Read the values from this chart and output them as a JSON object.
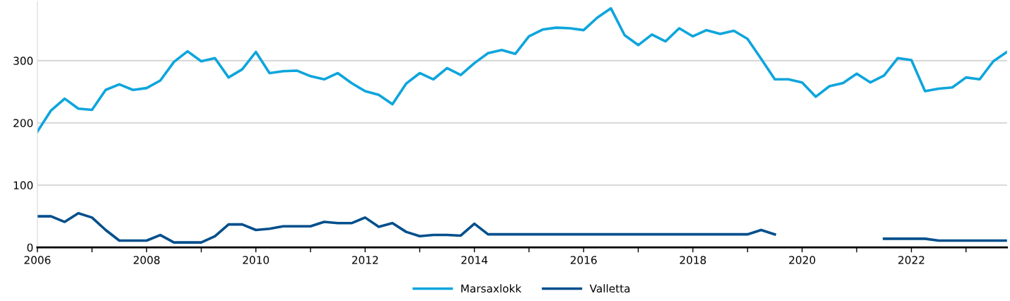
{
  "chart_data": {
    "type": "line",
    "x": [
      2006.0,
      2006.25,
      2006.5,
      2006.75,
      2007.0,
      2007.25,
      2007.5,
      2007.75,
      2008.0,
      2008.25,
      2008.5,
      2008.75,
      2009.0,
      2009.25,
      2009.5,
      2009.75,
      2010.0,
      2010.25,
      2010.5,
      2010.75,
      2011.0,
      2011.25,
      2011.5,
      2011.75,
      2012.0,
      2012.25,
      2012.5,
      2012.75,
      2013.0,
      2013.25,
      2013.5,
      2013.75,
      2014.0,
      2014.25,
      2014.5,
      2014.75,
      2015.0,
      2015.25,
      2015.5,
      2015.75,
      2016.0,
      2016.25,
      2016.5,
      2016.75,
      2017.0,
      2017.25,
      2017.5,
      2017.75,
      2018.0,
      2018.25,
      2018.5,
      2018.75,
      2019.0,
      2019.25,
      2019.5,
      2019.75,
      2020.0,
      2020.25,
      2020.5,
      2020.75,
      2021.0,
      2021.25,
      2021.5,
      2021.75,
      2022.0,
      2022.25,
      2022.5,
      2022.75,
      2023.0,
      2023.25,
      2023.5,
      2023.75
    ],
    "series": [
      {
        "name": "Marsaxlokk",
        "color": "#0ea5dc",
        "values": [
          186,
          220,
          239,
          223,
          221,
          253,
          262,
          253,
          256,
          268,
          298,
          315,
          299,
          304,
          273,
          286,
          314,
          280,
          283,
          284,
          275,
          270,
          280,
          264,
          251,
          245,
          230,
          263,
          280,
          270,
          288,
          277,
          296,
          312,
          317,
          311,
          339,
          350,
          353,
          352,
          349,
          369,
          384,
          341,
          325,
          342,
          331,
          352,
          339,
          349,
          343,
          348,
          335,
          303,
          270,
          270,
          265,
          242,
          259,
          264,
          279,
          265,
          276,
          304,
          301,
          251,
          255,
          257,
          273,
          270,
          299,
          314
        ]
      },
      {
        "name": "Valletta",
        "color": "#004f8c",
        "values": [
          50,
          50,
          41,
          55,
          48,
          28,
          11,
          11,
          11,
          20,
          8,
          8,
          8,
          18,
          37,
          37,
          28,
          30,
          34,
          34,
          34,
          41,
          39,
          39,
          48,
          33,
          39,
          25,
          18,
          20,
          20,
          19,
          38,
          21,
          21,
          21,
          21,
          21,
          21,
          21,
          21,
          21,
          21,
          21,
          21,
          21,
          21,
          21,
          21,
          21,
          21,
          21,
          21,
          28,
          21,
          null,
          null,
          null,
          null,
          null,
          null,
          null,
          14,
          14,
          14,
          14,
          11,
          11,
          11,
          11,
          11,
          11
        ]
      }
    ],
    "xlim": [
      2006,
      2023.75
    ],
    "xticks": [
      2006,
      {
        "value": 2007,
        "label": null
      },
      2008,
      {
        "value": 2009,
        "label": null
      },
      2010,
      {
        "value": 2011,
        "label": null
      },
      2012,
      {
        "value": 2013,
        "label": null
      },
      2014,
      {
        "value": 2015,
        "label": null
      },
      2016,
      {
        "value": 2017,
        "label": null
      },
      2018,
      {
        "value": 2019,
        "label": null
      },
      2020,
      {
        "value": 2021,
        "label": null
      },
      2022,
      {
        "value": 2023,
        "label": null
      }
    ],
    "ylim": [
      0,
      395
    ],
    "yticks": [
      0,
      100,
      200,
      300
    ],
    "grid": "y",
    "legend": "bottom",
    "line_style": "solid",
    "marker": "none"
  }
}
